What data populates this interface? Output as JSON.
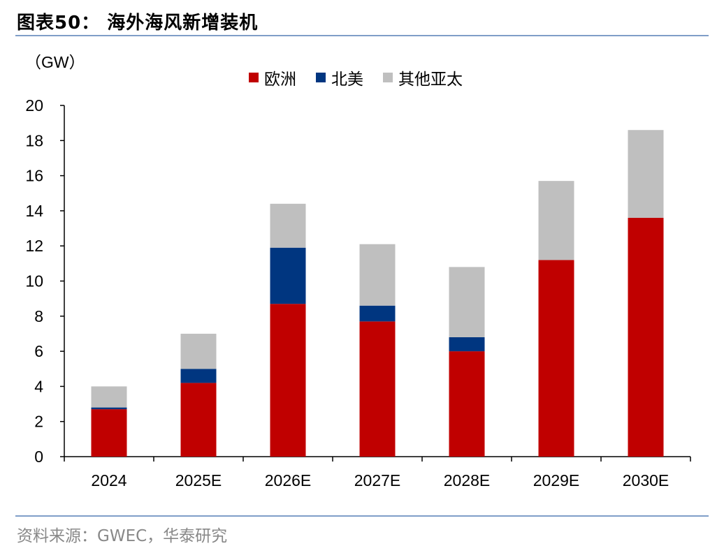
{
  "figure_title": "图表50： 海外海风新增装机",
  "unit_label": "（GW）",
  "source_note": "资料来源：GWEC，华泰研究",
  "colors": {
    "欧洲": "#c00000",
    "北美": "#003680",
    "其他亚太": "#bfbfbf",
    "rule": "#7f9ec8",
    "axis": "#000000"
  },
  "chart_data": {
    "type": "bar",
    "stacked": true,
    "categories": [
      "2024",
      "2025E",
      "2026E",
      "2027E",
      "2028E",
      "2029E",
      "2030E"
    ],
    "series": [
      {
        "name": "欧洲",
        "values": [
          2.7,
          4.2,
          8.7,
          7.7,
          6.0,
          11.2,
          13.6
        ]
      },
      {
        "name": "北美",
        "values": [
          0.1,
          0.8,
          3.2,
          0.9,
          0.8,
          0.0,
          0.0
        ]
      },
      {
        "name": "其他亚太",
        "values": [
          1.2,
          2.0,
          2.5,
          3.5,
          4.0,
          4.5,
          5.0
        ]
      }
    ],
    "ylim": [
      0,
      20
    ],
    "yticks": [
      "0",
      "2",
      "4",
      "6",
      "8",
      "10",
      "12",
      "14",
      "16",
      "18",
      "20"
    ],
    "xlabel": "",
    "ylabel": "",
    "grid": false,
    "legend_position": "top-center"
  }
}
